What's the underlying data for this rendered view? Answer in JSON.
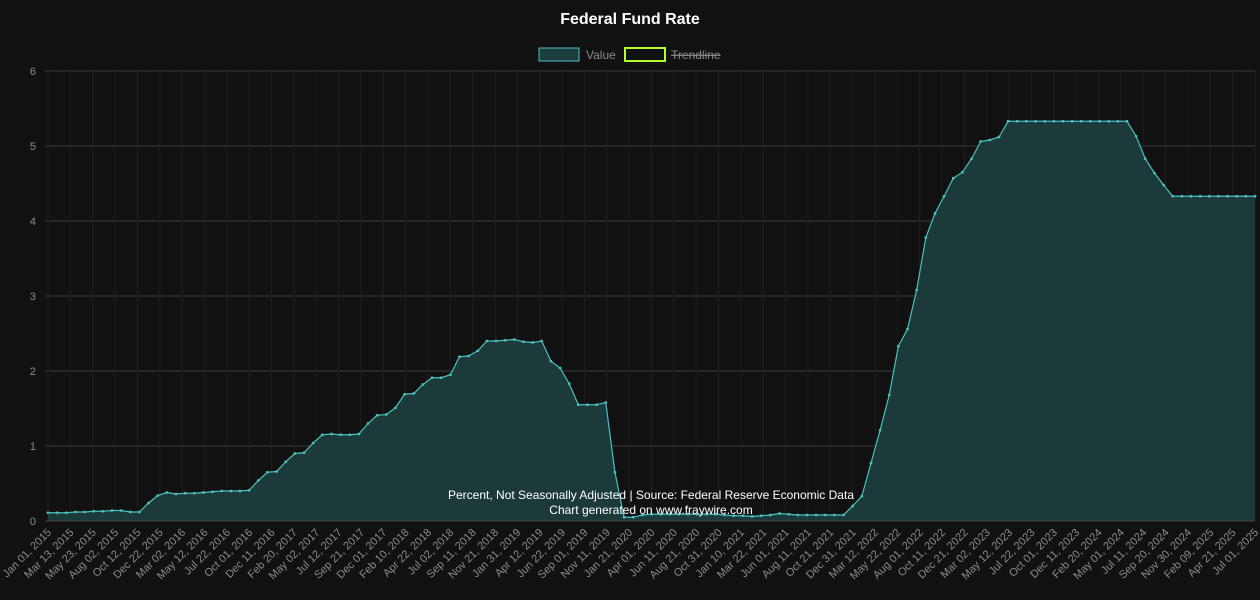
{
  "chart_data": {
    "type": "area",
    "title": "Federal Fund Rate",
    "legend": {
      "position": "top-center",
      "items": [
        {
          "label": "Value",
          "color": "#4bc0c0",
          "hidden": false
        },
        {
          "label": "Trendline",
          "color": "#b4ff2a",
          "hidden": true
        }
      ]
    },
    "caption": {
      "line1": "Percent, Not Seasonally Adjusted | Source: Federal Reserve Economic Data",
      "line2": "Chart generated on www.fraywire.com"
    },
    "ylim": [
      0,
      6
    ],
    "y_ticks": [
      "0",
      "1",
      "2",
      "3",
      "4",
      "5",
      "6"
    ],
    "grid": true,
    "x_tick_labels": [
      "Jan 01, 2015",
      "Mar 13, 2015",
      "May 23, 2015",
      "Aug 02, 2015",
      "Oct 12, 2015",
      "Dec 22, 2015",
      "Mar 02, 2016",
      "May 12, 2016",
      "Jul 22, 2016",
      "Oct 01, 2016",
      "Dec 11, 2016",
      "Feb 20, 2017",
      "May 02, 2017",
      "Jul 12, 2017",
      "Sep 21, 2017",
      "Dec 01, 2017",
      "Feb 10, 2018",
      "Apr 22, 2018",
      "Jul 02, 2018",
      "Sep 11, 2018",
      "Nov 21, 2018",
      "Jan 31, 2019",
      "Apr 12, 2019",
      "Jun 22, 2019",
      "Sep 01, 2019",
      "Nov 11, 2019",
      "Jan 21, 2020",
      "Apr 01, 2020",
      "Jun 11, 2020",
      "Aug 21, 2020",
      "Oct 31, 2020",
      "Jan 10, 2021",
      "Mar 22, 2021",
      "Jun 01, 2021",
      "Aug 11, 2021",
      "Oct 21, 2021",
      "Dec 31, 2021",
      "Mar 12, 2022",
      "May 22, 2022",
      "Aug 01, 2022",
      "Oct 11, 2022",
      "Dec 21, 2022",
      "Mar 02, 2023",
      "May 12, 2023",
      "Jul 22, 2023",
      "Oct 01, 2023",
      "Dec 11, 2023",
      "Feb 20, 2024",
      "May 01, 2024",
      "Jul 11, 2024",
      "Sep 20, 2024",
      "Nov 30, 2024",
      "Feb 09, 2025",
      "Apr 21, 2025",
      "Jul 01, 2025"
    ],
    "series": [
      {
        "name": "Value",
        "color": "#4bc0c0",
        "fill": "#1c3d3c",
        "values": [
          0.11,
          0.11,
          0.11,
          0.12,
          0.12,
          0.13,
          0.13,
          0.14,
          0.14,
          0.12,
          0.12,
          0.24,
          0.34,
          0.38,
          0.36,
          0.37,
          0.37,
          0.38,
          0.39,
          0.4,
          0.4,
          0.4,
          0.41,
          0.54,
          0.65,
          0.66,
          0.79,
          0.9,
          0.91,
          1.04,
          1.15,
          1.16,
          1.15,
          1.15,
          1.16,
          1.3,
          1.41,
          1.42,
          1.51,
          1.69,
          1.7,
          1.82,
          1.91,
          1.91,
          1.95,
          2.19,
          2.2,
          2.27,
          2.4,
          2.4,
          2.41,
          2.42,
          2.39,
          2.38,
          2.4,
          2.13,
          2.04,
          1.83,
          1.55,
          1.55,
          1.55,
          1.58,
          0.65,
          0.05,
          0.05,
          0.08,
          0.09,
          0.09,
          0.09,
          0.09,
          0.09,
          0.09,
          0.09,
          0.09,
          0.08,
          0.07,
          0.07,
          0.06,
          0.07,
          0.08,
          0.1,
          0.09,
          0.08,
          0.08,
          0.08,
          0.08,
          0.08,
          0.08,
          0.2,
          0.33,
          0.77,
          1.21,
          1.68,
          2.33,
          2.56,
          3.08,
          3.78,
          4.1,
          4.33,
          4.57,
          4.65,
          4.83,
          5.06,
          5.08,
          5.12,
          5.33,
          5.33,
          5.33,
          5.33,
          5.33,
          5.33,
          5.33,
          5.33,
          5.33,
          5.33,
          5.33,
          5.33,
          5.33,
          5.33,
          5.13,
          4.83,
          4.64,
          4.48,
          4.33,
          4.33,
          4.33,
          4.33,
          4.33,
          4.33,
          4.33,
          4.33,
          4.33,
          4.33
        ]
      }
    ]
  }
}
